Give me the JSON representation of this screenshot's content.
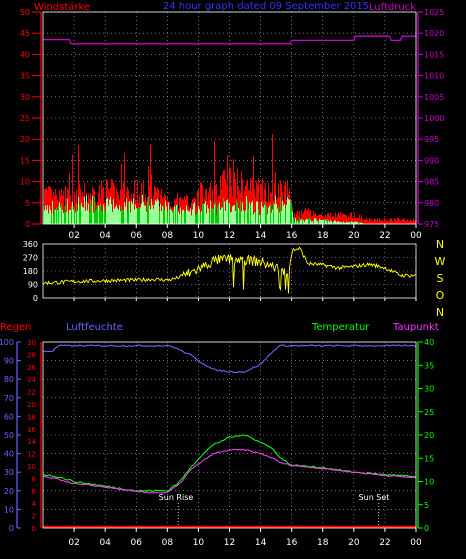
{
  "header": {
    "left_label": "Windstärke",
    "center_label": "24 hour graph dated 09 September 2015",
    "right_label": "Luftdruck"
  },
  "wind_dir_letters": [
    "N",
    "W",
    "S",
    "O",
    "N"
  ],
  "bottom_labels": {
    "regen": "Regen",
    "luftfeuchte": "Luftfeuchte",
    "temperatur": "Temperatur",
    "taupunkt": "Taupunkt",
    "sun_rise": "Sun Rise",
    "sun_set": "Sun Set"
  },
  "colors": {
    "wind_gust": "#ff0000",
    "wind_avg": "#99ff99",
    "wind_avg_dark": "#00cc00",
    "pressure": "#cc00cc",
    "direction": "#ffff00",
    "humidity": "#6666ff",
    "temperature": "#00ff00",
    "dewpoint": "#ff33ff",
    "rain": "#ff0000",
    "grid": "#bbbbbb",
    "axis_label": "#ffffff"
  },
  "chart_data": [
    {
      "type": "bar",
      "name": "wind",
      "x_ticks": [
        "02",
        "04",
        "06",
        "08",
        "10",
        "12",
        "14",
        "16",
        "18",
        "20",
        "22",
        "00"
      ],
      "y_left_ticks": [
        0,
        5,
        10,
        15,
        20,
        25,
        30,
        35,
        40,
        45,
        50
      ],
      "y_left_range": [
        0,
        50
      ],
      "y_right_ticks": [
        975,
        980,
        985,
        990,
        995,
        1000,
        1005,
        1010,
        1015,
        1020,
        1025
      ],
      "y_right_range": [
        975,
        1025
      ],
      "x_range_hours": [
        0,
        24
      ],
      "gust_profile": [
        [
          0,
          7
        ],
        [
          1,
          6
        ],
        [
          2,
          7
        ],
        [
          3,
          7
        ],
        [
          4,
          8
        ],
        [
          5,
          7
        ],
        [
          6,
          8
        ],
        [
          7,
          7
        ],
        [
          8,
          6
        ],
        [
          9,
          5
        ],
        [
          10,
          7
        ],
        [
          11,
          8
        ],
        [
          12,
          10
        ],
        [
          13,
          9
        ],
        [
          14,
          8
        ],
        [
          15,
          9
        ],
        [
          15.9,
          8
        ],
        [
          16.1,
          2
        ],
        [
          17,
          3
        ],
        [
          18,
          2
        ],
        [
          19,
          2
        ],
        [
          20,
          2
        ],
        [
          21,
          1
        ],
        [
          22,
          1
        ],
        [
          23,
          1
        ],
        [
          24,
          1
        ]
      ],
      "avg_profile": [
        [
          0,
          4
        ],
        [
          1,
          4
        ],
        [
          2,
          5
        ],
        [
          3,
          5
        ],
        [
          4,
          5
        ],
        [
          5,
          5
        ],
        [
          6,
          5
        ],
        [
          7,
          5
        ],
        [
          8,
          4
        ],
        [
          9,
          3
        ],
        [
          10,
          4
        ],
        [
          11,
          4
        ],
        [
          12,
          5
        ],
        [
          13,
          5
        ],
        [
          14,
          4
        ],
        [
          15,
          5
        ],
        [
          15.9,
          5
        ],
        [
          16.1,
          1
        ],
        [
          17,
          1
        ],
        [
          18,
          1
        ],
        [
          19,
          0.5
        ],
        [
          20,
          0.5
        ],
        [
          21,
          0
        ],
        [
          22,
          0
        ],
        [
          23,
          0
        ],
        [
          24,
          0
        ]
      ],
      "pressure": [
        [
          0,
          1018.5
        ],
        [
          1.7,
          1018.5
        ],
        [
          1.8,
          1017.5
        ],
        [
          15.9,
          1017.5
        ],
        [
          16.0,
          1018.3
        ],
        [
          20.0,
          1018.3
        ],
        [
          20.1,
          1019.3
        ],
        [
          22.3,
          1019.3
        ],
        [
          22.4,
          1018.3
        ],
        [
          23.0,
          1018.3
        ],
        [
          23.1,
          1019.3
        ],
        [
          24,
          1019.3
        ]
      ]
    },
    {
      "type": "line",
      "name": "wind_direction",
      "y_ticks": [
        0,
        90,
        180,
        270,
        360
      ],
      "y_range": [
        0,
        360
      ],
      "profile": [
        [
          0,
          100
        ],
        [
          2,
          110
        ],
        [
          4,
          115
        ],
        [
          6,
          120
        ],
        [
          7,
          125
        ],
        [
          8,
          120
        ],
        [
          8.5,
          130
        ],
        [
          9.5,
          170
        ],
        [
          10.5,
          220
        ],
        [
          11,
          250
        ],
        [
          12,
          260
        ],
        [
          13,
          255
        ],
        [
          14,
          240
        ],
        [
          15,
          200
        ],
        [
          15.7,
          160
        ],
        [
          16,
          320
        ],
        [
          16.5,
          330
        ],
        [
          17,
          230
        ],
        [
          18,
          220
        ],
        [
          19,
          200
        ],
        [
          20,
          210
        ],
        [
          21,
          225
        ],
        [
          22,
          200
        ],
        [
          23,
          150
        ],
        [
          24,
          150
        ]
      ]
    },
    {
      "type": "line",
      "name": "weather",
      "y_left_ticks": [
        0,
        10,
        20,
        30,
        40,
        50,
        60,
        70,
        80,
        90,
        100
      ],
      "y_left_range": [
        0,
        100
      ],
      "y_inner_ticks": [
        0,
        2,
        4,
        6,
        8,
        10,
        12,
        14,
        16,
        18,
        20,
        22,
        24,
        26,
        28,
        30
      ],
      "y_inner_range": [
        0,
        30
      ],
      "y_right_ticks": [
        0,
        5,
        10,
        15,
        20,
        25,
        30,
        35,
        40
      ],
      "y_right_range": [
        0,
        40
      ],
      "humidity": [
        [
          0,
          95
        ],
        [
          0.6,
          95
        ],
        [
          1,
          98
        ],
        [
          8.2,
          98
        ],
        [
          9.5,
          93
        ],
        [
          10,
          90
        ],
        [
          11,
          85
        ],
        [
          12,
          84
        ],
        [
          13,
          84
        ],
        [
          14,
          88
        ],
        [
          14.8,
          95
        ],
        [
          15.2,
          98
        ],
        [
          24,
          98
        ]
      ],
      "temperature": [
        [
          0,
          11.5
        ],
        [
          1,
          11
        ],
        [
          2,
          10
        ],
        [
          3,
          9.5
        ],
        [
          4,
          9
        ],
        [
          5,
          8.5
        ],
        [
          6,
          8
        ],
        [
          7,
          8
        ],
        [
          8,
          8
        ],
        [
          8.8,
          10
        ],
        [
          9.5,
          13
        ],
        [
          10.3,
          16
        ],
        [
          11,
          18
        ],
        [
          12,
          19.5
        ],
        [
          13,
          20
        ],
        [
          14,
          18.5
        ],
        [
          14.8,
          17
        ],
        [
          15.3,
          15
        ],
        [
          16,
          13.5
        ],
        [
          18,
          13
        ],
        [
          20,
          12
        ],
        [
          22,
          11.5
        ],
        [
          24,
          11
        ]
      ],
      "dewpoint": [
        [
          0,
          11
        ],
        [
          1,
          10.5
        ],
        [
          2,
          9.5
        ],
        [
          3,
          9.2
        ],
        [
          4,
          8.8
        ],
        [
          5,
          8.3
        ],
        [
          6,
          7.8
        ],
        [
          7,
          7.6
        ],
        [
          8,
          7.6
        ],
        [
          8.8,
          9.5
        ],
        [
          9.5,
          12.5
        ],
        [
          10.3,
          14.5
        ],
        [
          11,
          16
        ],
        [
          12,
          16.8
        ],
        [
          13,
          16.8
        ],
        [
          14,
          16
        ],
        [
          14.8,
          15
        ],
        [
          15.3,
          14
        ],
        [
          16,
          13.5
        ],
        [
          18,
          12.8
        ],
        [
          20,
          12
        ],
        [
          22,
          11.3
        ],
        [
          24,
          10.8
        ]
      ],
      "rain": [
        [
          0,
          0
        ],
        [
          24,
          0
        ]
      ],
      "sun_rise_hour": 8.7,
      "sun_set_hour": 21.6
    }
  ]
}
